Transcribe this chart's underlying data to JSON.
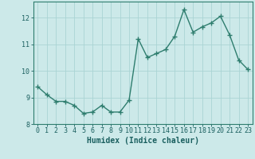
{
  "x": [
    0,
    1,
    2,
    3,
    4,
    5,
    6,
    7,
    8,
    9,
    10,
    11,
    12,
    13,
    14,
    15,
    16,
    17,
    18,
    19,
    20,
    21,
    22,
    23
  ],
  "y": [
    9.4,
    9.1,
    8.85,
    8.85,
    8.7,
    8.4,
    8.45,
    8.7,
    8.45,
    8.45,
    8.9,
    11.2,
    10.5,
    10.65,
    10.8,
    11.3,
    12.3,
    11.45,
    11.65,
    11.8,
    12.05,
    11.35,
    10.4,
    10.05
  ],
  "line_color": "#2e7d6e",
  "marker": "+",
  "marker_size": 4,
  "marker_lw": 1.0,
  "bg_color": "#cce9e9",
  "grid_color": "#aad4d4",
  "xlabel": "Humidex (Indice chaleur)",
  "xlabel_fontsize": 7,
  "tick_fontsize": 6,
  "ylim": [
    8.0,
    12.6
  ],
  "xlim": [
    -0.5,
    23.5
  ],
  "yticks": [
    8,
    9,
    10,
    11,
    12
  ],
  "xticks": [
    0,
    1,
    2,
    3,
    4,
    5,
    6,
    7,
    8,
    9,
    10,
    11,
    12,
    13,
    14,
    15,
    16,
    17,
    18,
    19,
    20,
    21,
    22,
    23
  ],
  "text_color": "#1a5f5f",
  "spine_color": "#2e7d6e",
  "line_width": 1.0
}
